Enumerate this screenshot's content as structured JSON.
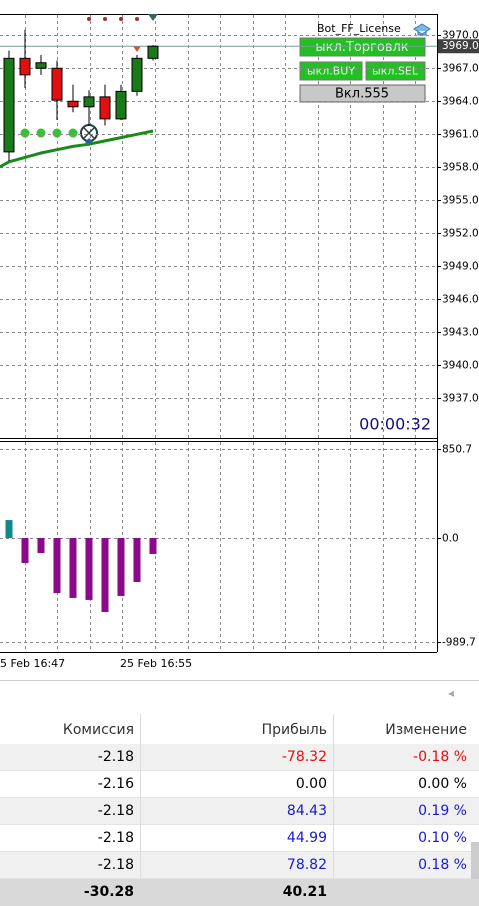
{
  "price_chart": {
    "bot_label": "Bot_FF_License",
    "ylim": [
      3933.5,
      3973.2
    ],
    "yticks": [
      {
        "value": 3970,
        "label": "3970.0"
      },
      {
        "value": 3967,
        "label": "3967.0"
      },
      {
        "value": 3964,
        "label": "3964.0"
      },
      {
        "value": 3961,
        "label": "3961.0"
      },
      {
        "value": 3958,
        "label": "3958.0"
      },
      {
        "value": 3955,
        "label": "3955.0"
      },
      {
        "value": 3952,
        "label": "3952.0"
      },
      {
        "value": 3949,
        "label": "3949.0"
      },
      {
        "value": 3946,
        "label": "3946.0"
      },
      {
        "value": 3943,
        "label": "3943.0"
      },
      {
        "value": 3940,
        "label": "3940.0"
      },
      {
        "value": 3937,
        "label": "3937.0"
      }
    ],
    "last_price": {
      "value": 3969,
      "label": "3969.0"
    },
    "candles": [
      {
        "open": 3959.4,
        "high": 3968.6,
        "low": 3958.6,
        "close": 3967.9
      },
      {
        "open": 3967.9,
        "high": 3970.5,
        "low": 3965.2,
        "close": 3966.4
      },
      {
        "open": 3967.0,
        "high": 3968.2,
        "low": 3966.4,
        "close": 3967.5
      },
      {
        "open": 3967.0,
        "high": 3967.7,
        "low": 3962.3,
        "close": 3964.1
      },
      {
        "open": 3964.0,
        "high": 3965.5,
        "low": 3963.0,
        "close": 3963.5
      },
      {
        "open": 3963.5,
        "high": 3965.0,
        "low": 3961.8,
        "close": 3964.4
      },
      {
        "open": 3964.4,
        "high": 3965.5,
        "low": 3961.8,
        "close": 3962.4
      },
      {
        "open": 3962.4,
        "high": 3965.5,
        "low": 3962.3,
        "close": 3964.9
      },
      {
        "open": 3964.9,
        "high": 3968.2,
        "low": 3964.5,
        "close": 3967.9
      },
      {
        "open": 3967.9,
        "high": 3969.1,
        "low": 3967.7,
        "close": 3969.0
      }
    ],
    "ma": [
      3958.5,
      3958.9,
      3959.3,
      3959.6,
      3959.9,
      3960.1,
      3960.4,
      3960.7,
      3961.0,
      3961.3
    ],
    "up_color": "#1a7a1a",
    "down_color": "#e01010",
    "ma_color": "#1a8a1a",
    "timer": "00:00:32",
    "buttons": [
      "ыкл.Торговлк",
      "ыкл.BUY",
      "ыкл.SEL",
      "Вкл.555"
    ]
  },
  "indicator": {
    "ylim": [
      -1085.7,
      923.8
    ],
    "yticks": [
      850.7,
      {
        "value": 0,
        "label": "0.0"
      },
      -989.7
    ],
    "values": [
      171,
      -238,
      -143,
      -524,
      -571,
      -590,
      -705,
      -552,
      -419,
      -152
    ],
    "up_color": "#0f8a8a",
    "down_color": "#8a0a8a",
    "xticks": [
      "5 Feb 16:47",
      "25 Feb 16:55"
    ]
  },
  "table": {
    "headers": [
      "Комиссия",
      "Прибыль",
      "Изменение"
    ],
    "rows": [
      [
        "-2.18",
        "-78.32",
        "-0.18 %"
      ],
      [
        "-2.16",
        "0.00",
        "0.00 %"
      ],
      [
        "-2.18",
        "84.43",
        "0.19 %"
      ],
      [
        "-2.18",
        "44.99",
        "0.10 %"
      ],
      [
        "-2.18",
        "78.82",
        "0.18 %"
      ]
    ],
    "total": [
      "-30.28",
      "40.21"
    ]
  }
}
